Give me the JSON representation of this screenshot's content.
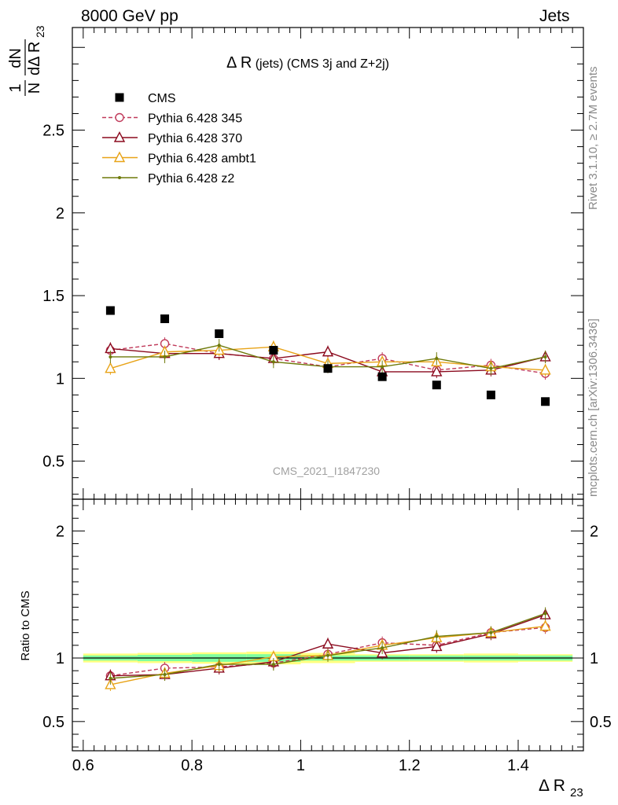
{
  "header": {
    "left": "8000 GeV pp",
    "right": "Jets"
  },
  "side_text": {
    "upper": "Rivet 3.1.10, ≥ 2.7M events",
    "lower": "mcplots.cern.ch [arXiv:1306.3436]"
  },
  "colors": {
    "cms": "#000000",
    "p345": "#c03a5a",
    "p370": "#8b0a1e",
    "ambt1": "#e8a317",
    "z2": "#6e7a0a",
    "band_inner": "#7fffa0",
    "band_outer": "#ffff80"
  },
  "chart_data": [
    {
      "type": "scatter",
      "title": "Δ R (jets) (CMS 3j and Z+2j)",
      "ylabel": "1/N dN/dΔ R23",
      "watermark": "CMS_2021_I1847230",
      "xlim": [
        0.58,
        1.52
      ],
      "ylim": [
        0.27,
        3.12
      ],
      "yticks": [
        "0.5",
        "1",
        "1.5",
        "2",
        "2.5"
      ],
      "x": [
        0.65,
        0.75,
        0.85,
        0.95,
        1.05,
        1.15,
        1.25,
        1.35,
        1.45
      ],
      "legend": [
        "CMS",
        "Pythia 6.428 345",
        "Pythia 6.428 370",
        "Pythia 6.428 ambt1",
        "Pythia 6.428 z2"
      ],
      "legend_position": "top-left",
      "series": [
        {
          "name": "CMS",
          "values": [
            1.41,
            1.36,
            1.27,
            1.17,
            1.06,
            1.01,
            0.96,
            0.9,
            0.86
          ]
        },
        {
          "name": "Pythia 6.428 345",
          "values": [
            1.17,
            1.21,
            1.15,
            1.12,
            1.07,
            1.12,
            1.05,
            1.08,
            1.03
          ]
        },
        {
          "name": "Pythia 6.428 370",
          "values": [
            1.18,
            1.15,
            1.15,
            1.12,
            1.16,
            1.04,
            1.04,
            1.05,
            1.13
          ]
        },
        {
          "name": "Pythia 6.428 ambt1",
          "values": [
            1.06,
            1.16,
            1.17,
            1.19,
            1.09,
            1.1,
            1.1,
            1.07,
            1.05
          ]
        },
        {
          "name": "Pythia 6.428 z2",
          "values": [
            1.13,
            1.13,
            1.2,
            1.1,
            1.07,
            1.07,
            1.12,
            1.06,
            1.13
          ]
        }
      ]
    },
    {
      "type": "line",
      "ylabel": "Ratio to CMS",
      "xlabel": "Δ R23",
      "xlim": [
        0.58,
        1.52
      ],
      "xticks": [
        "0.6",
        "0.8",
        "1",
        "1.2",
        "1.4"
      ],
      "ylim": [
        0.27,
        2.25
      ],
      "yticks": [
        "0.5",
        "1",
        "2"
      ],
      "x": [
        0.65,
        0.75,
        0.85,
        0.95,
        1.05,
        1.15,
        1.25,
        1.35,
        1.45
      ],
      "series": [
        {
          "name": "Pythia 6.428 345",
          "values": [
            0.86,
            0.92,
            0.93,
            0.96,
            1.03,
            1.12,
            1.1,
            1.2,
            1.24
          ]
        },
        {
          "name": "Pythia 6.428 370",
          "values": [
            0.86,
            0.87,
            0.92,
            0.97,
            1.11,
            1.04,
            1.09,
            1.19,
            1.34
          ]
        },
        {
          "name": "Pythia 6.428 ambt1",
          "values": [
            0.79,
            0.88,
            0.94,
            1.01,
            1.02,
            1.1,
            1.16,
            1.2,
            1.25
          ]
        },
        {
          "name": "Pythia 6.428 z2",
          "values": [
            0.84,
            0.87,
            0.95,
            0.95,
            1.02,
            1.08,
            1.17,
            1.2,
            1.35
          ]
        }
      ]
    }
  ]
}
